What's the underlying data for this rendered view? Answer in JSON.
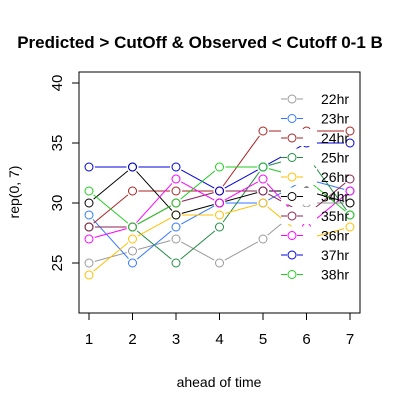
{
  "chart_data": {
    "type": "line",
    "title": "Predicted > CutOff & Observed < Cutoff 0-1 B",
    "xlabel": "ahead of time",
    "ylabel": "rep(0, 7)",
    "x": [
      1,
      2,
      3,
      4,
      5,
      6,
      7
    ],
    "xlim": [
      1,
      7
    ],
    "ylim": [
      21,
      40
    ],
    "x_ticks": [
      "1",
      "2",
      "3",
      "4",
      "5",
      "6",
      "7"
    ],
    "y_ticks": [
      "25",
      "30",
      "35",
      "40"
    ],
    "y_tick_values": [
      25,
      30,
      35,
      40
    ],
    "legend_position": "top-right",
    "series": [
      {
        "name": "22hr",
        "color": "#999999",
        "values": [
          25,
          26,
          27,
          25,
          27,
          30,
          30
        ]
      },
      {
        "name": "23hr",
        "color": "#3377ff",
        "values": [
          29,
          25,
          28,
          30,
          30,
          32,
          31
        ]
      },
      {
        "name": "24hr",
        "color": "#aa2222",
        "values": [
          28,
          31,
          31,
          31,
          36,
          36,
          36
        ]
      },
      {
        "name": "25hr",
        "color": "#228b44",
        "values": [
          28,
          28,
          25,
          28,
          33,
          34,
          29
        ]
      },
      {
        "name": "26hr",
        "color": "#ffc000",
        "values": [
          24,
          27,
          29,
          29,
          30,
          27,
          28
        ]
      },
      {
        "name": "34hr",
        "color": "#000000",
        "values": [
          30,
          33,
          29,
          30,
          31,
          31,
          30
        ]
      },
      {
        "name": "35hr",
        "color": "#8b2252",
        "values": [
          28,
          28,
          30,
          31,
          31,
          29,
          32
        ]
      },
      {
        "name": "36hr",
        "color": "#ff00ff",
        "values": [
          27,
          28,
          32,
          30,
          32,
          28,
          31
        ]
      },
      {
        "name": "37hr",
        "color": "#0000dd",
        "values": [
          33,
          33,
          33,
          31,
          33,
          35,
          35
        ]
      },
      {
        "name": "38hr",
        "color": "#22cc22",
        "values": [
          31,
          28,
          30,
          33,
          33,
          32,
          29
        ]
      }
    ]
  }
}
